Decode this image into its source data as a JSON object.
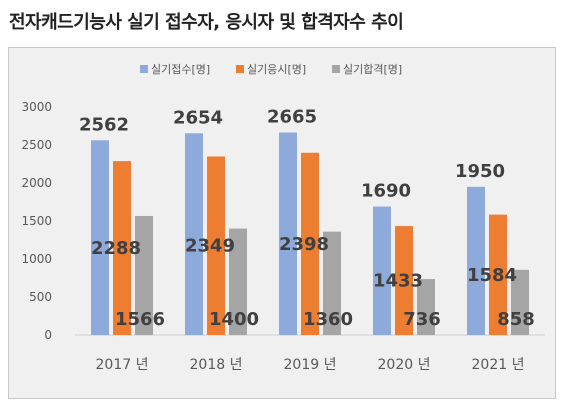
{
  "title": "전자캐드기능사 실기 접수자, 응시자 및 합격자수 추이",
  "chart_data": {
    "type": "bar",
    "categories": [
      "2017 년",
      "2018 년",
      "2019 년",
      "2020 년",
      "2021 년"
    ],
    "series": [
      {
        "name": "실기접수[명]",
        "color": "#8eaadb",
        "values": [
          2562,
          2654,
          2665,
          1690,
          1950
        ]
      },
      {
        "name": "실기응시[명]",
        "color": "#ed7d31",
        "values": [
          2288,
          2349,
          2398,
          1433,
          1584
        ]
      },
      {
        "name": "실기합격[명]",
        "color": "#a5a5a5",
        "values": [
          1566,
          1400,
          1360,
          736,
          858
        ]
      }
    ],
    "yticks": [
      "0",
      "500",
      "1000",
      "1500",
      "2000",
      "2500",
      "3000"
    ],
    "ylim": [
      0,
      3000
    ],
    "grid": false,
    "legend": "top-center"
  }
}
